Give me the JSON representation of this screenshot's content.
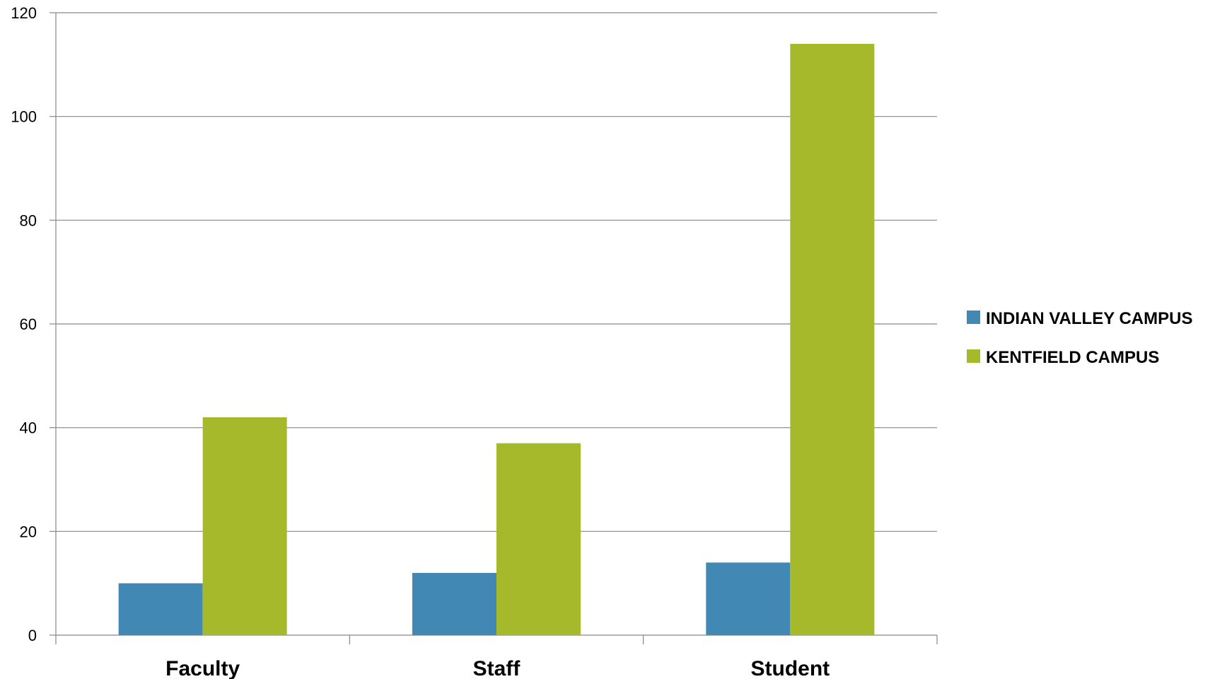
{
  "chart_data": {
    "type": "bar",
    "title": "",
    "xlabel": "",
    "ylabel": "",
    "categories": [
      "Faculty",
      "Staff",
      "Student"
    ],
    "series": [
      {
        "name": "INDIAN VALLEY CAMPUS",
        "color": "#4189b4",
        "values": [
          10,
          12,
          14
        ]
      },
      {
        "name": "KENTFIELD CAMPUS",
        "color": "#a6b92a",
        "values": [
          42,
          37,
          114
        ]
      }
    ],
    "ylim": [
      0,
      120
    ],
    "yticks": [
      "0",
      "20",
      "40",
      "60",
      "80",
      "100",
      "120"
    ],
    "grid": true,
    "legend_position": "right"
  }
}
